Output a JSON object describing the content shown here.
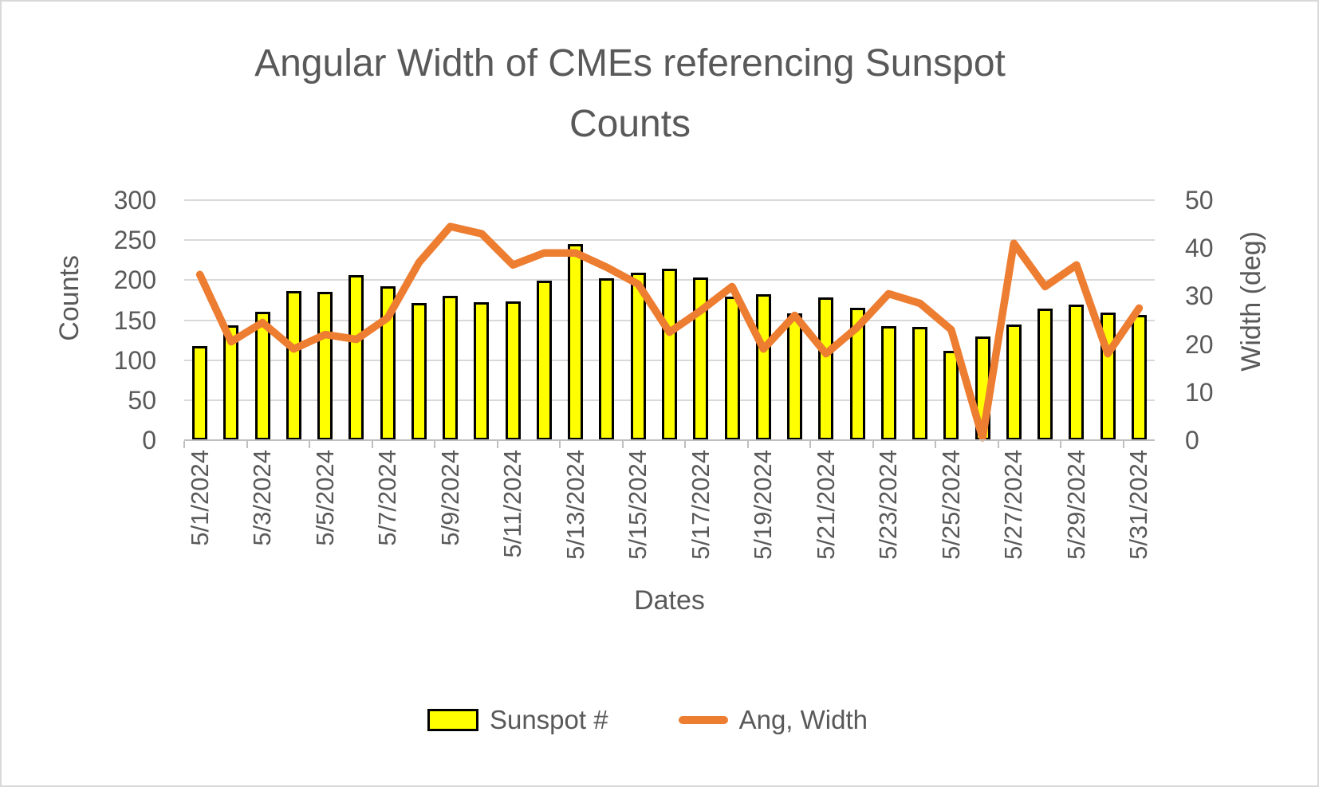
{
  "figure": {
    "title_line1": "Angular Width of CMEs referencing Sunspot",
    "title_line2": "Counts"
  },
  "chart_data": {
    "type": "combo-bar-line",
    "title": "Angular Width of CMEs referencing Sunspot Counts",
    "xlabel": "Dates",
    "ylabel_left": "Counts",
    "ylabel_right": "Width (deg)",
    "ylim_left": [
      0,
      300
    ],
    "ytick_labels_left": [
      "300",
      "250",
      "200",
      "150",
      "100",
      "50",
      "0"
    ],
    "ylim_right": [
      0,
      50
    ],
    "ytick_labels_right": [
      "50",
      "40",
      "30",
      "20",
      "10",
      "0"
    ],
    "grid": true,
    "legend_position": "bottom",
    "x_tick_label_interval": 2,
    "x_tick_labels_shown": [
      "5/1/2024",
      "5/3/2024",
      "5/5/2024",
      "5/7/2024",
      "5/9/2024",
      "5/11/2024",
      "5/13/2024",
      "5/15/2024",
      "5/17/2024",
      "5/19/2024",
      "5/21/2024",
      "5/23/2024",
      "5/25/2024",
      "5/27/2024",
      "5/29/2024",
      "5/31/2024"
    ],
    "categories": [
      "5/1/2024",
      "5/2/2024",
      "5/3/2024",
      "5/4/2024",
      "5/5/2024",
      "5/6/2024",
      "5/7/2024",
      "5/8/2024",
      "5/9/2024",
      "5/10/2024",
      "5/11/2024",
      "5/12/2024",
      "5/13/2024",
      "5/14/2024",
      "5/15/2024",
      "5/16/2024",
      "5/17/2024",
      "5/18/2024",
      "5/19/2024",
      "5/20/2024",
      "5/21/2024",
      "5/22/2024",
      "5/23/2024",
      "5/24/2024",
      "5/25/2024",
      "5/26/2024",
      "5/27/2024",
      "5/28/2024",
      "5/29/2024",
      "5/30/2024",
      "5/31/2024"
    ],
    "series": [
      {
        "name": "Sunspot #",
        "type": "bar",
        "axis": "left",
        "color": "#FFFF00",
        "border_color": "#000000",
        "values": [
          118,
          144,
          160,
          186,
          185,
          206,
          192,
          171,
          180,
          172,
          173,
          199,
          245,
          202,
          209,
          214,
          203,
          179,
          182,
          158,
          178,
          165,
          143,
          142,
          112,
          130,
          145,
          164,
          169,
          159,
          156
        ]
      },
      {
        "name": "Ang, Width",
        "type": "line",
        "axis": "right",
        "color": "#ED7D31",
        "values": [
          34.5,
          20.5,
          24.5,
          19,
          22,
          21,
          25.5,
          37,
          44.5,
          43,
          36.5,
          39,
          39,
          36,
          32.5,
          22.5,
          27,
          32,
          19,
          26,
          18,
          23.5,
          30.5,
          28.5,
          23,
          0.5,
          41,
          32,
          36.5,
          18,
          27.5
        ]
      }
    ],
    "colors": {
      "bar_fill": "#FFFF00",
      "bar_border": "#000000",
      "line": "#ED7D31",
      "gridline": "#D9D9D9",
      "axis_line": "#BFBFBF",
      "text": "#595959",
      "background": "#FFFFFF",
      "frame_border": "#D9D9D9"
    }
  }
}
